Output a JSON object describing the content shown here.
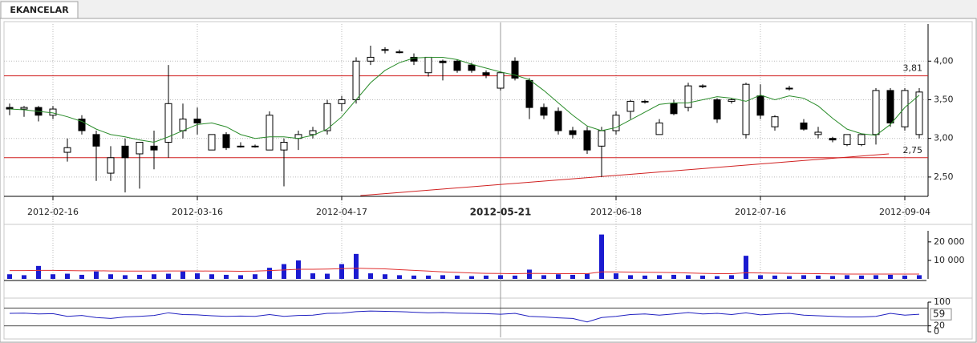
{
  "tab": "EKANCELAR",
  "chart_data": [
    {
      "type": "candlestick",
      "categories": [
        null,
        null,
        null,
        "2012-02-16",
        null,
        null,
        null,
        null,
        null,
        null,
        null,
        null,
        null,
        "2012-03-16",
        null,
        null,
        null,
        null,
        null,
        null,
        null,
        null,
        null,
        "2012-04-17",
        null,
        null,
        null,
        null,
        null,
        null,
        null,
        null,
        null,
        null,
        "2012-05-21",
        null,
        null,
        null,
        null,
        null,
        null,
        null,
        "2012-06-18",
        null,
        null,
        null,
        null,
        null,
        null,
        null,
        null,
        null,
        "2012-07-16",
        null,
        null,
        null,
        null,
        null,
        null,
        null,
        null,
        null,
        "2012-09-04",
        null
      ],
      "crosshair": 34,
      "open": [
        3.4,
        3.38,
        3.4,
        3.3,
        2.82,
        3.25,
        3.05,
        2.55,
        2.9,
        2.8,
        2.9,
        2.95,
        3.1,
        3.25,
        2.85,
        3.05,
        2.9,
        2.9,
        2.85,
        2.85,
        3.0,
        3.05,
        3.1,
        3.45,
        3.5,
        4.0,
        4.15,
        4.12,
        4.05,
        3.85,
        4.0,
        4.0,
        3.95,
        3.85,
        3.65,
        4.0,
        3.75,
        3.4,
        3.35,
        3.1,
        3.1,
        2.9,
        3.1,
        3.35,
        3.48,
        3.05,
        3.45,
        3.4,
        3.68,
        3.5,
        3.48,
        3.05,
        3.55,
        3.15,
        3.65,
        3.2,
        3.05,
        3.0,
        2.92,
        2.92,
        3.05,
        3.62,
        3.15,
        3.05
      ],
      "high": [
        3.45,
        3.42,
        3.42,
        3.42,
        3.0,
        3.3,
        3.1,
        2.9,
        3.0,
        2.95,
        3.1,
        3.95,
        3.45,
        3.4,
        3.05,
        3.08,
        2.95,
        2.92,
        3.35,
        3.0,
        3.1,
        3.15,
        3.5,
        3.55,
        4.05,
        4.2,
        4.18,
        4.15,
        4.1,
        4.05,
        4.02,
        4.02,
        3.98,
        3.88,
        3.85,
        4.05,
        3.78,
        3.45,
        3.4,
        3.15,
        3.15,
        3.15,
        3.35,
        3.5,
        3.5,
        3.25,
        3.5,
        3.72,
        3.7,
        3.52,
        3.52,
        3.72,
        3.7,
        3.3,
        3.68,
        3.25,
        3.15,
        3.02,
        3.05,
        3.05,
        3.65,
        3.65,
        3.65,
        3.65
      ],
      "low": [
        3.3,
        3.28,
        3.22,
        3.25,
        2.7,
        3.05,
        2.45,
        2.45,
        2.3,
        2.35,
        2.6,
        2.75,
        3.0,
        3.05,
        2.85,
        2.85,
        2.88,
        2.88,
        2.85,
        2.38,
        2.85,
        3.0,
        3.05,
        3.35,
        3.45,
        3.95,
        4.1,
        4.1,
        3.95,
        3.8,
        3.75,
        3.85,
        3.85,
        3.78,
        3.62,
        3.75,
        3.25,
        3.25,
        3.05,
        3.0,
        2.8,
        2.5,
        3.05,
        3.25,
        3.45,
        3.05,
        3.3,
        3.35,
        3.65,
        3.2,
        3.45,
        3.0,
        3.25,
        3.1,
        3.62,
        3.1,
        3.0,
        2.95,
        2.9,
        2.9,
        2.92,
        3.15,
        3.1,
        3.0
      ],
      "close": [
        3.38,
        3.4,
        3.3,
        3.38,
        2.88,
        3.1,
        2.9,
        2.75,
        2.75,
        2.95,
        2.85,
        3.45,
        3.25,
        3.2,
        3.05,
        2.88,
        2.9,
        2.9,
        3.3,
        2.95,
        3.05,
        3.1,
        3.45,
        3.5,
        4.0,
        4.05,
        4.15,
        4.12,
        4.0,
        4.05,
        3.98,
        3.88,
        3.88,
        3.82,
        3.85,
        3.78,
        3.4,
        3.3,
        3.1,
        3.05,
        2.85,
        3.1,
        3.3,
        3.48,
        3.48,
        3.2,
        3.32,
        3.68,
        3.68,
        3.25,
        3.5,
        3.7,
        3.3,
        3.28,
        3.65,
        3.12,
        3.08,
        2.98,
        3.05,
        3.05,
        3.62,
        3.2,
        3.62,
        3.6
      ],
      "up_color": "#ffffff",
      "down_color": "#000000",
      "overlay": {
        "color": "#2a8c2a",
        "values": [
          3.38,
          3.37,
          3.35,
          3.33,
          3.28,
          3.22,
          3.12,
          3.05,
          3.02,
          2.98,
          2.95,
          3.02,
          3.1,
          3.18,
          3.2,
          3.15,
          3.05,
          3.0,
          3.02,
          3.02,
          3.0,
          3.04,
          3.12,
          3.28,
          3.5,
          3.72,
          3.88,
          3.98,
          4.04,
          4.05,
          4.05,
          4.02,
          3.96,
          3.91,
          3.86,
          3.82,
          3.76,
          3.62,
          3.46,
          3.3,
          3.16,
          3.1,
          3.14,
          3.24,
          3.34,
          3.44,
          3.46,
          3.46,
          3.5,
          3.54,
          3.52,
          3.48,
          3.56,
          3.5,
          3.55,
          3.52,
          3.42,
          3.26,
          3.12,
          3.06,
          3.04,
          3.18,
          3.4,
          3.56
        ]
      },
      "hlines": [
        {
          "value": 3.81,
          "label": "3,81",
          "color": "#d02020"
        },
        {
          "value": 2.75,
          "label": "2,75",
          "color": "#d02020"
        }
      ],
      "trendline": {
        "color": "#d02020",
        "x": [
          24.3,
          60.9
        ],
        "values": [
          2.26,
          2.8
        ]
      },
      "ylim": [
        2.25,
        4.48
      ],
      "yticks": [
        {
          "value": 2.5,
          "label": "2,50"
        },
        {
          "value": 3.0,
          "label": "3,00"
        },
        {
          "value": 3.5,
          "label": "3,50"
        },
        {
          "value": 4.0,
          "label": "4,00"
        }
      ],
      "grid": true
    },
    {
      "type": "bar",
      "values": [
        2500,
        2000,
        7000,
        2500,
        2800,
        2200,
        4000,
        2500,
        2000,
        2200,
        2500,
        2800,
        4000,
        3000,
        2500,
        2200,
        2000,
        2500,
        6000,
        8000,
        10000,
        3000,
        2800,
        8000,
        13500,
        3000,
        2500,
        2000,
        1800,
        1800,
        2000,
        1800,
        1500,
        1800,
        2000,
        1800,
        5000,
        2000,
        2500,
        2200,
        2800,
        24000,
        3000,
        2000,
        1800,
        2000,
        2200,
        2000,
        1800,
        1500,
        2000,
        12500,
        2000,
        1800,
        1500,
        2000,
        1800,
        1600,
        2000,
        1800,
        2000,
        2200,
        1800,
        2000
      ],
      "color": "#1a1ad0",
      "overlay": {
        "color": "#e03030",
        "values": [
          4500,
          4500,
          4600,
          4600,
          4500,
          4400,
          4400,
          4300,
          4200,
          4200,
          4200,
          4300,
          4300,
          4300,
          4200,
          4200,
          4100,
          4200,
          4500,
          4800,
          5200,
          5200,
          5300,
          5500,
          5800,
          5600,
          5400,
          5000,
          4600,
          4200,
          3800,
          3500,
          3200,
          3000,
          2900,
          2800,
          3000,
          2900,
          2800,
          2800,
          2800,
          3800,
          3800,
          3700,
          3600,
          3500,
          3400,
          3200,
          3000,
          2800,
          2800,
          3300,
          3200,
          3100,
          3000,
          2900,
          2800,
          2700,
          2600,
          2600,
          2600,
          2600,
          2600,
          2600
        ]
      },
      "ylim": [
        0,
        26000
      ],
      "yticks": [
        {
          "value": 10000,
          "label": "10 000"
        },
        {
          "value": 20000,
          "label": "20 000"
        }
      ],
      "grid": false
    },
    {
      "type": "line",
      "values": [
        62,
        63,
        60,
        61,
        52,
        55,
        48,
        45,
        50,
        52,
        55,
        64,
        58,
        57,
        54,
        52,
        53,
        52,
        58,
        52,
        55,
        56,
        62,
        63,
        68,
        70,
        69,
        68,
        66,
        64,
        65,
        63,
        62,
        61,
        59,
        62,
        52,
        50,
        47,
        45,
        33,
        48,
        52,
        58,
        60,
        56,
        60,
        65,
        60,
        62,
        58,
        64,
        57,
        60,
        62,
        56,
        54,
        52,
        50,
        50,
        52,
        62,
        56,
        59
      ],
      "color": "#2020c0",
      "levels": [
        20,
        80
      ],
      "ylim": [
        0,
        100
      ],
      "yticks": [
        0,
        20,
        100
      ],
      "grid": false
    }
  ]
}
